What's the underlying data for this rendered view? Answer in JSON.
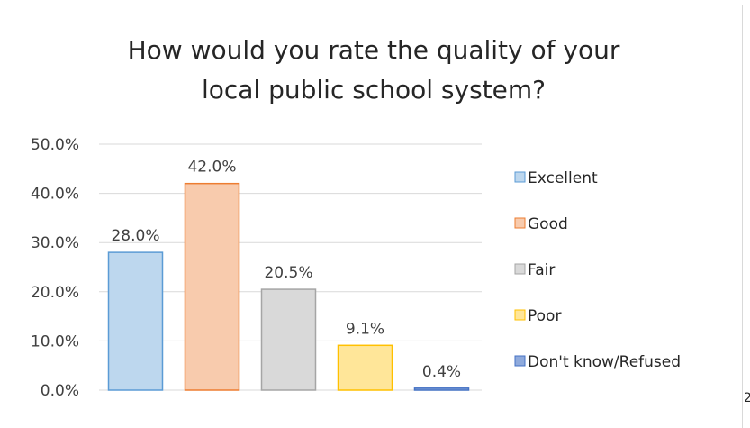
{
  "chart_data": {
    "type": "bar",
    "title_lines": [
      "How would you rate the quality of your",
      "local public school system?"
    ],
    "categories": [
      "Excellent",
      "Good",
      "Fair",
      "Poor",
      "Don't know/Refused"
    ],
    "values": [
      28.0,
      42.0,
      20.5,
      9.1,
      0.4
    ],
    "value_labels": [
      "28.0%",
      "42.0%",
      "20.5%",
      "9.1%",
      "0.4%"
    ],
    "ylim": [
      0,
      50
    ],
    "yticks": [
      0,
      10,
      20,
      30,
      40,
      50
    ],
    "ytick_labels": [
      "0.0%",
      "10.0%",
      "20.0%",
      "30.0%",
      "40.0%",
      "50.0%"
    ],
    "grid": true,
    "legend_position": "right",
    "colors": {
      "fills": [
        "#bdd7ee",
        "#f8cbad",
        "#d9d9d9",
        "#ffe699",
        "#8faadc"
      ],
      "strokes": [
        "#5b9bd5",
        "#ed7d31",
        "#a5a5a5",
        "#ffc000",
        "#4472c4"
      ]
    }
  },
  "page_mark": "2"
}
